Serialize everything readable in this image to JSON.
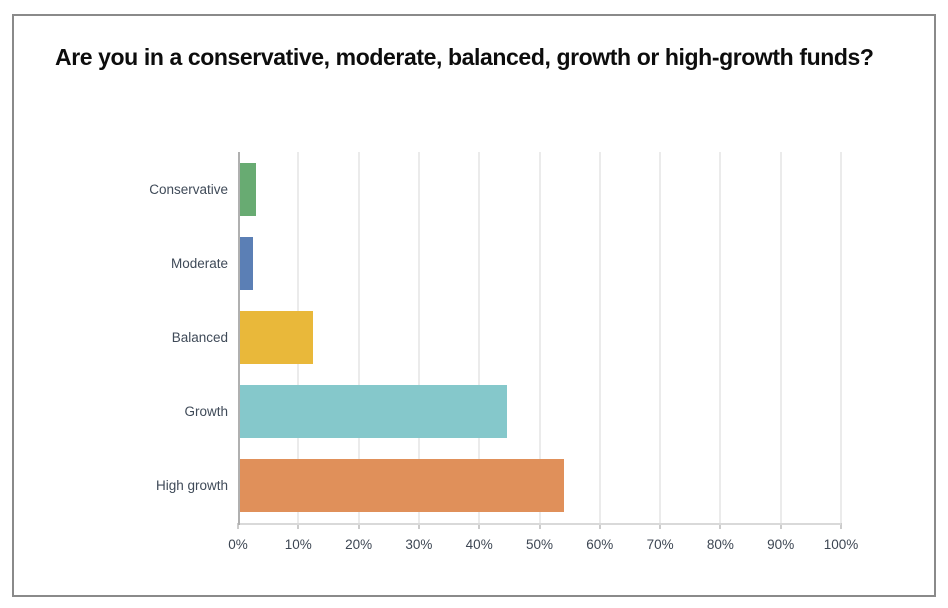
{
  "chart_data": {
    "type": "bar",
    "orientation": "horizontal",
    "title": "Are you in a conservative, moderate, balanced, growth or high-growth funds?",
    "categories": [
      "Conservative",
      "Moderate",
      "Balanced",
      "Growth",
      "High growth"
    ],
    "values": [
      2.6,
      2.1,
      12.1,
      44.3,
      53.7
    ],
    "bar_colors": [
      "#68ab72",
      "#5b7fb5",
      "#e9b83a",
      "#85c8cb",
      "#e0905a"
    ],
    "x_ticks_percent": [
      0,
      10,
      20,
      30,
      40,
      50,
      60,
      70,
      80,
      90,
      100
    ],
    "x_tick_labels": [
      "0%",
      "10%",
      "20%",
      "30%",
      "40%",
      "50%",
      "60%",
      "70%",
      "80%",
      "90%",
      "100%"
    ],
    "xlim": [
      0,
      100
    ],
    "xlabel": "",
    "ylabel": "",
    "grid": "vertical",
    "legend": "none"
  },
  "style_colors": {
    "frame_border": "#8a8a8a",
    "gridline": "#ebebeb",
    "y_axis_line": "#b0b0b0",
    "x_axis_line": "#d9d9d9",
    "tick_mark": "#cccccc",
    "title_text": "#0d0d0d",
    "label_text": "#3f4a58",
    "background": "#ffffff"
  }
}
